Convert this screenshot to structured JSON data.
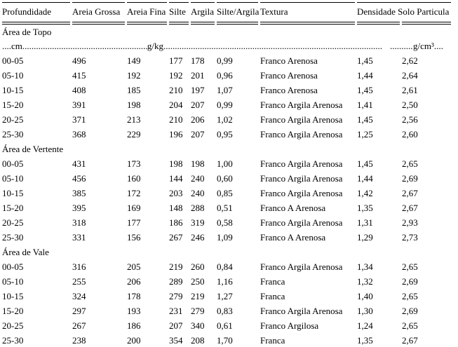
{
  "page": {
    "background": "#ffffff",
    "text_color": "#000000"
  },
  "table": {
    "header_cells": [
      {
        "label": "Profundidade",
        "span": 1
      },
      {
        "label": "Areia Grossa",
        "span": 1
      },
      {
        "label": "Areia Fina",
        "span": 1
      },
      {
        "label": "Silte",
        "span": 1
      },
      {
        "label": "Argila",
        "span": 1
      },
      {
        "label": "Silte/Argila",
        "span": 1
      },
      {
        "label": "Textura",
        "span": 1
      },
      {
        "label": "Densidade Solo Particula",
        "span": 2
      }
    ],
    "column_names": [
      "profundidade",
      "areia-grossa",
      "areia-fina",
      "silte",
      "argila",
      "silte-argila",
      "textura",
      "densidade-solo",
      "particula"
    ],
    "units": {
      "left": "....cm",
      "mass": "g/kg",
      "density": "g/cm³",
      "trailing": "....",
      "leader": "........................................................................................................................"
    },
    "sections": [
      {
        "title": "Área de Topo",
        "rows": [
          [
            "00-05",
            "496",
            "149",
            "177",
            "178",
            "0,99",
            "Franco Arenosa",
            "1,45",
            "2,62"
          ],
          [
            "05-10",
            "415",
            "192",
            "192",
            "201",
            "0,96",
            "Franco Arenosa",
            "1,44",
            "2,64"
          ],
          [
            "10-15",
            "408",
            "185",
            "210",
            "197",
            "1,07",
            "Franco Arenosa",
            "1,45",
            "2,61"
          ],
          [
            "15-20",
            "391",
            "198",
            "204",
            "207",
            "0,99",
            "Franco Argila Arenosa",
            "1,41",
            "2,50"
          ],
          [
            "20-25",
            "371",
            "213",
            "210",
            "206",
            "1,02",
            "Franco Argila Arenosa",
            "1,45",
            "2,56"
          ],
          [
            "25-30",
            "368",
            "229",
            "196",
            "207",
            "0,95",
            "Franco Argila Arenosa",
            "1,25",
            "2,60"
          ]
        ]
      },
      {
        "title": "Área de Vertente",
        "rows": [
          [
            "00-05",
            "431",
            "173",
            "198",
            "198",
            "1,00",
            "Franco Argila Arenosa",
            "1,45",
            "2,65"
          ],
          [
            "05-10",
            "456",
            "160",
            "144",
            "240",
            "0,60",
            "Franco Argila Arenosa",
            "1,44",
            "2,69"
          ],
          [
            "10-15",
            "385",
            "172",
            "203",
            "240",
            "0,85",
            "Franco Argila Arenosa",
            "1,42",
            "2,67"
          ],
          [
            "15-20",
            "395",
            "169",
            "148",
            "288",
            "0,51",
            "Franco A Arenosa",
            "1,35",
            "2,67"
          ],
          [
            "20-25",
            "318",
            "177",
            "186",
            "319",
            "0,58",
            "Franco Argila Arenosa",
            "1,31",
            "2,93"
          ],
          [
            "25-30",
            "331",
            "156",
            "267",
            "246",
            "1,09",
            "Franco A Arenosa",
            "1,29",
            "2,73"
          ]
        ]
      },
      {
        "title": "Área de Vale",
        "rows": [
          [
            "00-05",
            "316",
            "205",
            "219",
            "260",
            "0,84",
            "Franco Argila Arenosa",
            "1,34",
            "2,65"
          ],
          [
            "05-10",
            "255",
            "206",
            "289",
            "250",
            "1,16",
            "Franca",
            "1,32",
            "2,69"
          ],
          [
            "10-15",
            "324",
            "178",
            "279",
            "219",
            "1,27",
            "Franca",
            "1,40",
            "2,65"
          ],
          [
            "15-20",
            "297",
            "193",
            "231",
            "279",
            "0,83",
            "Franco Argila Arenosa",
            "1,30",
            "2,69"
          ],
          [
            "20-25",
            "267",
            "186",
            "207",
            "340",
            "0,61",
            "Franco Argilosa",
            "1,24",
            "2,65"
          ],
          [
            "25-30",
            "238",
            "200",
            "354",
            "208",
            "1,70",
            "Franca",
            "1,35",
            "2,67"
          ]
        ]
      }
    ]
  }
}
